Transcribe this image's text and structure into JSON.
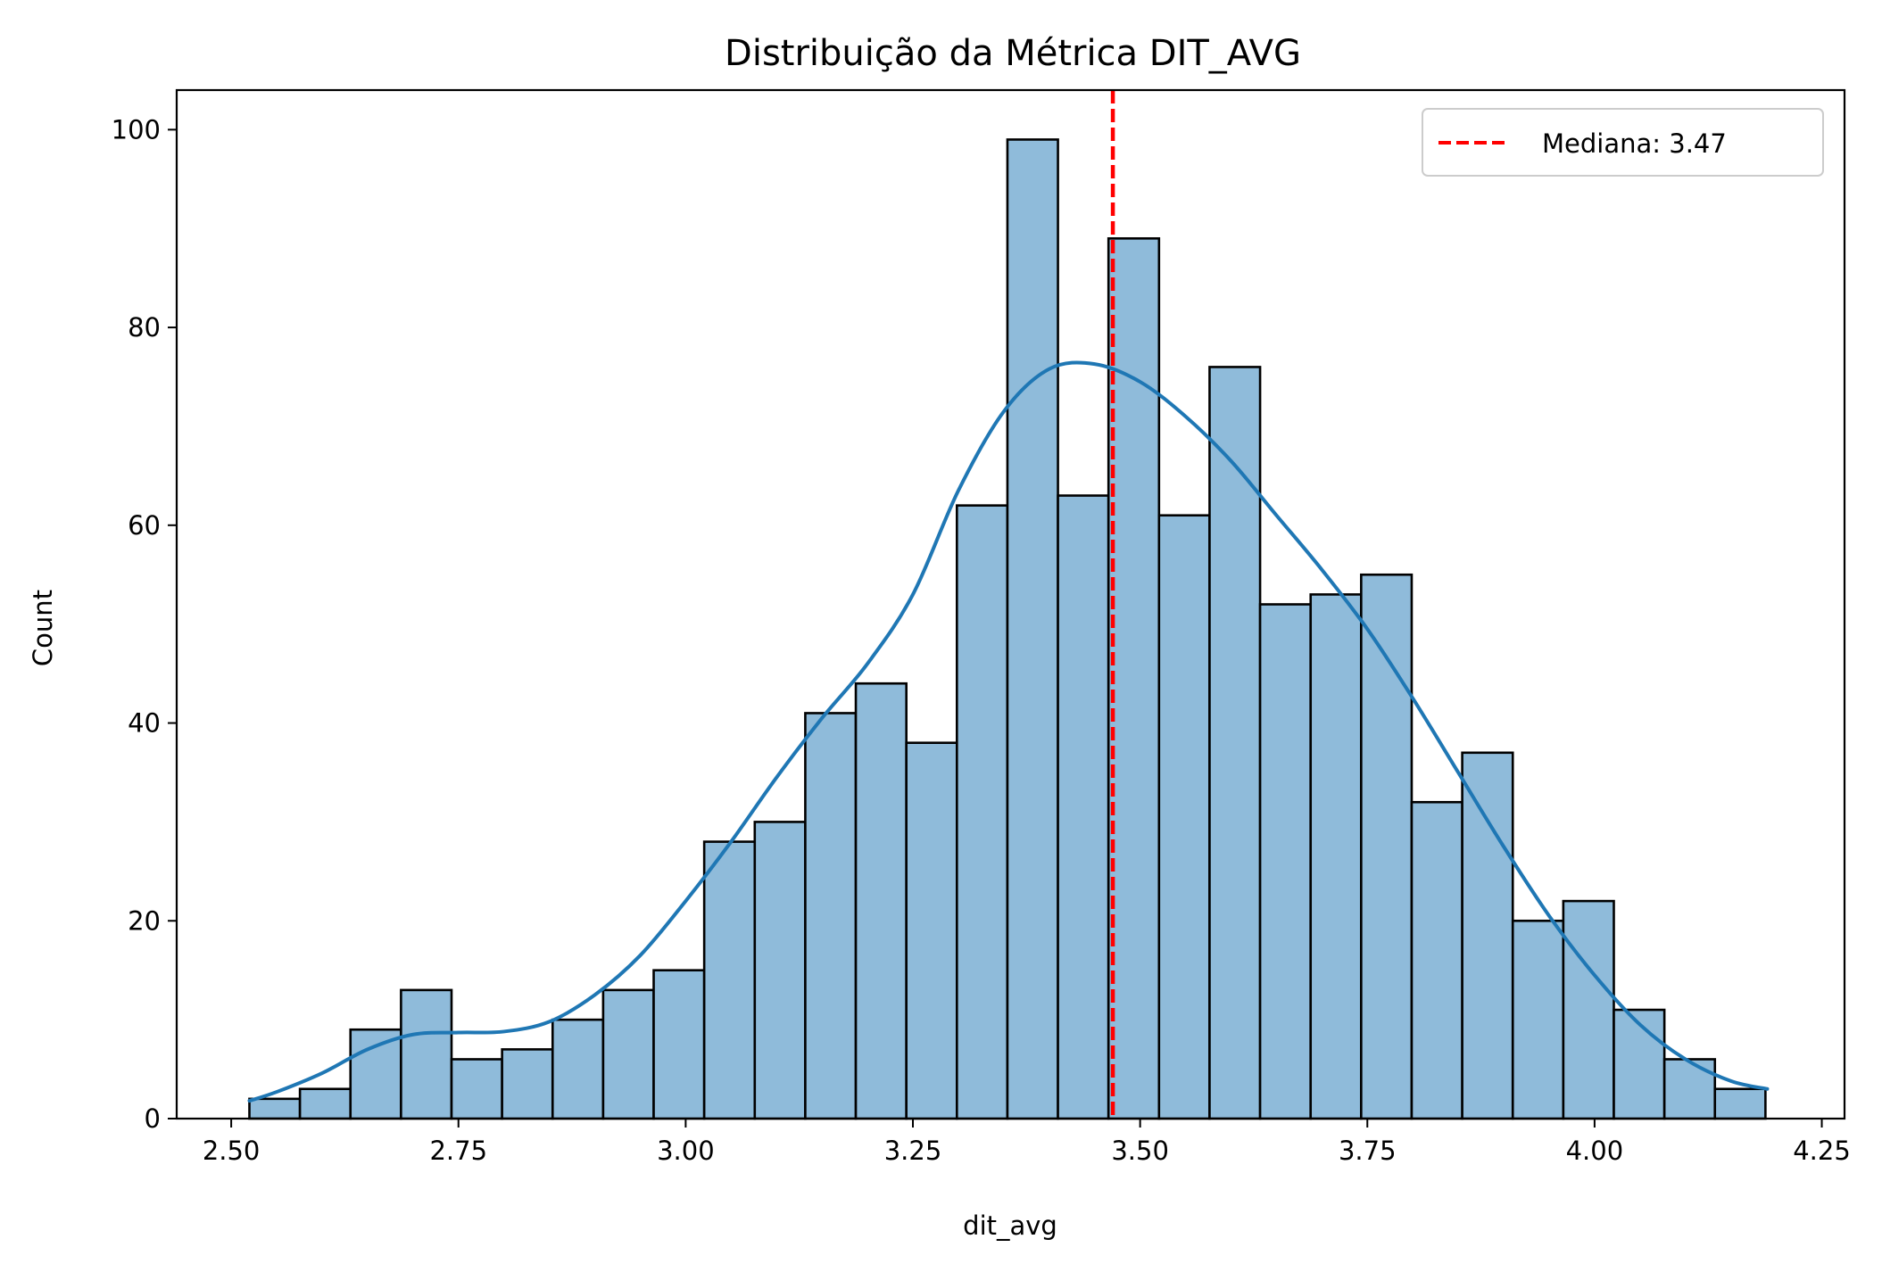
{
  "chart_data": {
    "type": "bar",
    "title": "Distribuição da Métrica DIT_AVG",
    "xlabel": "dit_avg",
    "ylabel": "Count",
    "xlim": [
      2.44,
      4.275
    ],
    "ylim": [
      0,
      104
    ],
    "x_ticks": [
      2.5,
      2.75,
      3.0,
      3.25,
      3.5,
      3.75,
      4.0,
      4.25
    ],
    "x_tick_labels": [
      "2.50",
      "2.75",
      "3.00",
      "3.25",
      "3.50",
      "3.75",
      "4.00",
      "4.25"
    ],
    "y_ticks": [
      0,
      20,
      40,
      60,
      80,
      100
    ],
    "y_tick_labels": [
      "0",
      "20",
      "40",
      "60",
      "80",
      "100"
    ],
    "grid": false,
    "bin_start": 2.52,
    "bin_width": 0.0556,
    "values": [
      2,
      3,
      9,
      13,
      6,
      7,
      10,
      13,
      15,
      28,
      30,
      41,
      44,
      38,
      62,
      99,
      63,
      89,
      61,
      76,
      52,
      53,
      55,
      32,
      37,
      20,
      22,
      11,
      6,
      3
    ],
    "kde": {
      "x": [
        2.52,
        2.55,
        2.6,
        2.65,
        2.7,
        2.75,
        2.8,
        2.85,
        2.9,
        2.95,
        3.0,
        3.05,
        3.1,
        3.15,
        3.2,
        3.25,
        3.3,
        3.35,
        3.4,
        3.45,
        3.5,
        3.55,
        3.6,
        3.65,
        3.7,
        3.75,
        3.8,
        3.85,
        3.9,
        3.95,
        4.0,
        4.05,
        4.1,
        4.15,
        4.19
      ],
      "y": [
        1.8,
        2.7,
        4.6,
        7.0,
        8.5,
        8.7,
        8.8,
        9.8,
        12.5,
        16.5,
        22.0,
        28.0,
        34.5,
        40.5,
        46.0,
        53.0,
        63.5,
        71.5,
        75.8,
        76.3,
        74.5,
        71.0,
        66.5,
        61.0,
        55.5,
        49.5,
        42.5,
        35.0,
        27.5,
        20.5,
        14.5,
        9.5,
        6.0,
        3.8,
        3.0
      ]
    },
    "median": 3.47,
    "legend": {
      "label": "Mediana: 3.47",
      "placement": "top-right"
    },
    "colors": {
      "bar_fill": "#8fbbda",
      "bar_edge": "#000000",
      "kde_line": "#1f77b4",
      "median_line": "#ff0000"
    }
  }
}
